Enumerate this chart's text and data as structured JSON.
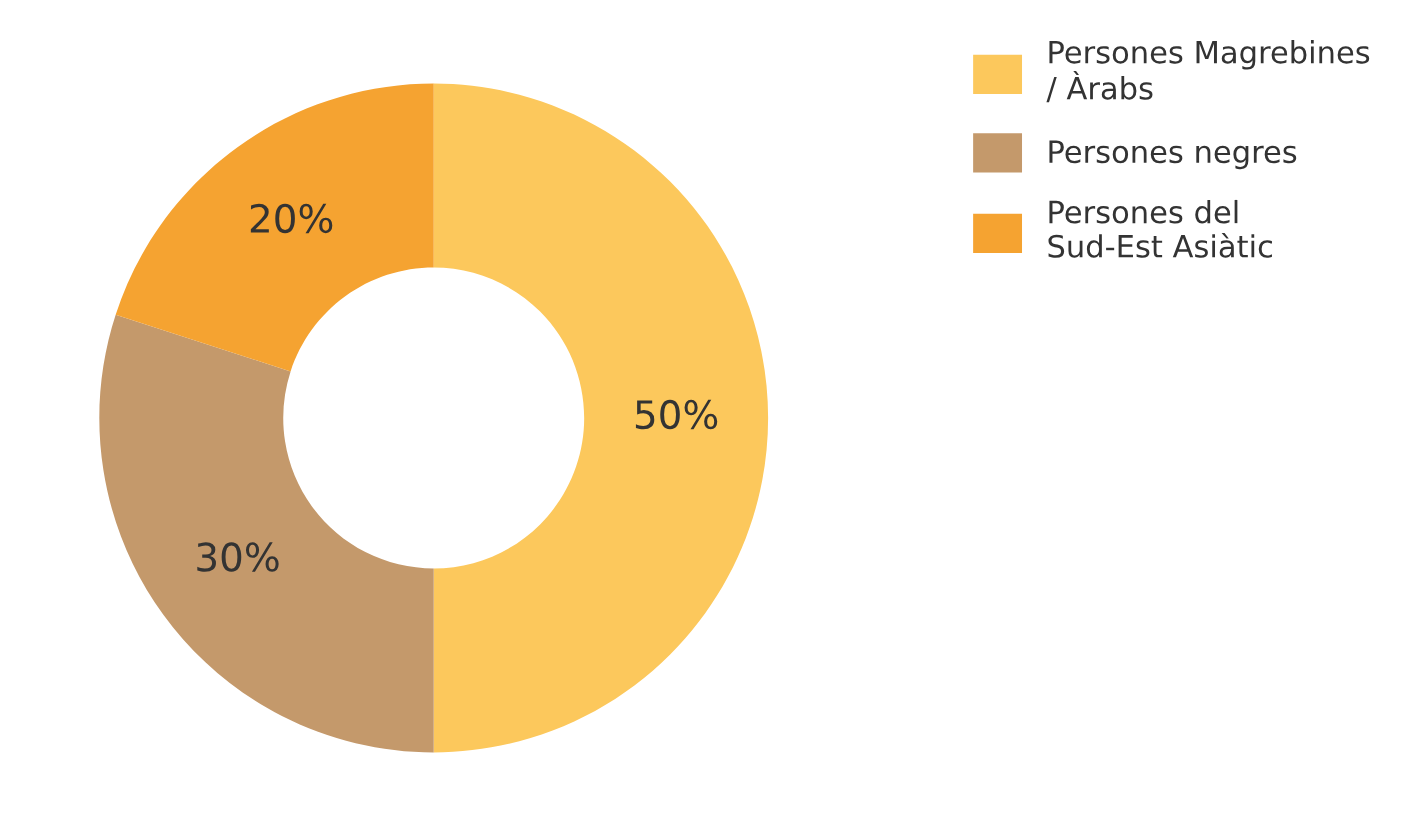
{
  "chart_data": {
    "type": "donut",
    "categories": [
      "Persones Magrebines\n/ Àrabs",
      "Persones negres",
      "Persones del\nSud-Est Asiàtic"
    ],
    "values": [
      50,
      30,
      20
    ],
    "colors": [
      "#fcc85c",
      "#c4996b",
      "#f5a331"
    ],
    "value_labels": [
      "50%",
      "30%",
      "20%"
    ],
    "legend": "right"
  }
}
